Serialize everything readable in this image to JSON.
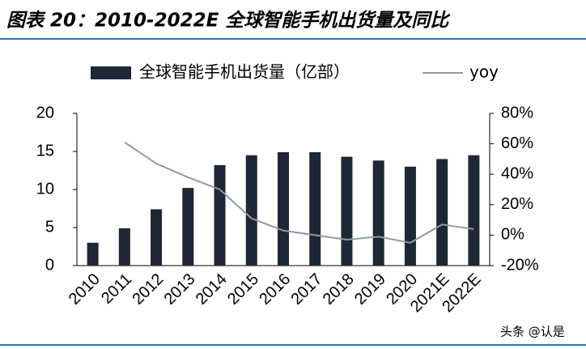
{
  "chart_data": {
    "type": "bar",
    "title": "图表 20：2010-2022E 全球智能手机出货量及同比",
    "watermark": "头条 @认是",
    "categories": [
      "2010",
      "2011",
      "2012",
      "2013",
      "2014",
      "2015",
      "2016",
      "2017",
      "2018",
      "2019",
      "2020",
      "2021E",
      "2022E"
    ],
    "series": [
      {
        "name": "全球智能手机出货量（亿部）",
        "type": "bar",
        "color": "#1f2635",
        "values": [
          3.0,
          4.9,
          7.4,
          10.2,
          13.2,
          14.5,
          14.9,
          14.9,
          14.3,
          13.8,
          13.0,
          14.0,
          14.5
        ]
      },
      {
        "name": "yoy",
        "type": "line",
        "axis": "y2",
        "color": "#8c9aab",
        "values": [
          null,
          61,
          47,
          38,
          30,
          11,
          3,
          0,
          -3,
          -1,
          -5,
          7,
          4
        ]
      }
    ],
    "ylim": [
      0,
      20
    ],
    "yticks": [
      0,
      5,
      10,
      15,
      20
    ],
    "y2lim": [
      -20,
      80
    ],
    "y2ticks": [
      {
        "value": -20,
        "label": "-20%"
      },
      {
        "value": 0,
        "label": "0%"
      },
      {
        "value": 20,
        "label": "20%"
      },
      {
        "value": 40,
        "label": "40%"
      },
      {
        "value": 60,
        "label": "60%"
      },
      {
        "value": 80,
        "label": "80%"
      }
    ],
    "legend": "top"
  }
}
